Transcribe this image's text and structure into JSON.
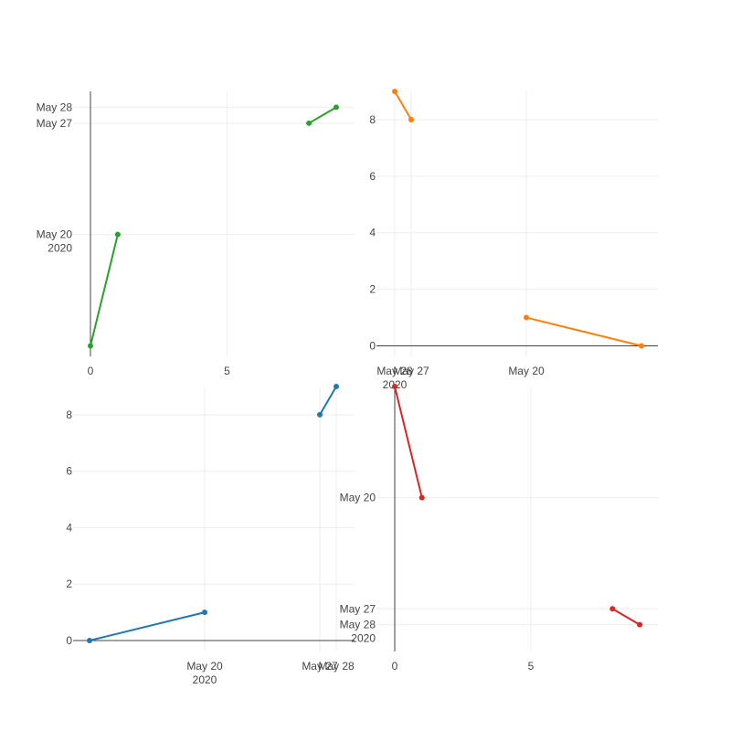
{
  "chart_data": [
    {
      "type": "line",
      "subplot": "top-left",
      "color": "#2ca02c",
      "x_axis": {
        "type": "linear",
        "range": [
          0,
          9.67
        ],
        "ticks": [
          {
            "value": 0,
            "label": "0"
          },
          {
            "value": 5,
            "label": "5"
          }
        ]
      },
      "y_axis": {
        "type": "date",
        "range": [
          "2020-05-13",
          "2020-05-29"
        ],
        "ticks": [
          {
            "value": "2020-05-20",
            "label": "May 20",
            "sub": "2020"
          },
          {
            "value": "2020-05-27",
            "label": "May 27"
          },
          {
            "value": "2020-05-28",
            "label": "May 28"
          }
        ]
      },
      "x": [
        0,
        1,
        8,
        9
      ],
      "y": [
        "2020-05-13",
        "2020-05-20",
        "2020-05-27",
        "2020-05-28"
      ],
      "grid": true
    },
    {
      "type": "line",
      "subplot": "top-right",
      "color": "#ff7f0e",
      "x_axis": {
        "type": "date",
        "range": [
          "2020-05-28",
          "2020-05-12"
        ],
        "ticks": [
          {
            "value": "2020-05-28",
            "label": "May 28",
            "sub": "2020"
          },
          {
            "value": "2020-05-27",
            "label": "May 27"
          },
          {
            "value": "2020-05-20",
            "label": "May 20"
          }
        ]
      },
      "y_axis": {
        "type": "linear",
        "range": [
          0,
          9
        ],
        "ticks": [
          {
            "value": 0,
            "label": "0"
          },
          {
            "value": 2,
            "label": "2"
          },
          {
            "value": 4,
            "label": "4"
          },
          {
            "value": 6,
            "label": "6"
          },
          {
            "value": 8,
            "label": "8"
          }
        ]
      },
      "x": [
        "2020-05-28",
        "2020-05-27",
        "2020-05-20",
        "2020-05-13"
      ],
      "y": [
        9,
        8,
        1,
        0
      ],
      "grid": true
    },
    {
      "type": "line",
      "subplot": "bottom-left",
      "color": "#1f77b4",
      "x_axis": {
        "type": "date",
        "range": [
          "2020-05-12",
          "2020-05-28"
        ],
        "ticks": [
          {
            "value": "2020-05-20",
            "label": "May 20",
            "sub": "2020"
          },
          {
            "value": "2020-05-27",
            "label": "May 27"
          },
          {
            "value": "2020-05-28",
            "label": "May 28"
          }
        ]
      },
      "y_axis": {
        "type": "linear",
        "range": [
          0,
          9
        ],
        "ticks": [
          {
            "value": 0,
            "label": "0"
          },
          {
            "value": 2,
            "label": "2"
          },
          {
            "value": 4,
            "label": "4"
          },
          {
            "value": 6,
            "label": "6"
          },
          {
            "value": 8,
            "label": "8"
          }
        ]
      },
      "x": [
        "2020-05-13",
        "2020-05-20",
        "2020-05-27",
        "2020-05-28"
      ],
      "y": [
        0,
        1,
        8,
        9
      ],
      "grid": true
    },
    {
      "type": "line",
      "subplot": "bottom-right",
      "color": "#d62728",
      "x_axis": {
        "type": "linear",
        "range": [
          0,
          9.67
        ],
        "ticks": [
          {
            "value": 0,
            "label": "0"
          },
          {
            "value": 5,
            "label": "5"
          }
        ]
      },
      "y_axis": {
        "type": "date",
        "range": [
          "2020-05-29",
          "2020-05-13"
        ],
        "ticks": [
          {
            "value": "2020-05-20",
            "label": "May 20"
          },
          {
            "value": "2020-05-27",
            "label": "May 27"
          },
          {
            "value": "2020-05-28",
            "label": "May 28",
            "sub": "2020"
          }
        ]
      },
      "x": [
        0,
        1,
        8,
        9
      ],
      "y": [
        "2020-05-13",
        "2020-05-20",
        "2020-05-27",
        "2020-05-28"
      ],
      "grid": true
    }
  ]
}
